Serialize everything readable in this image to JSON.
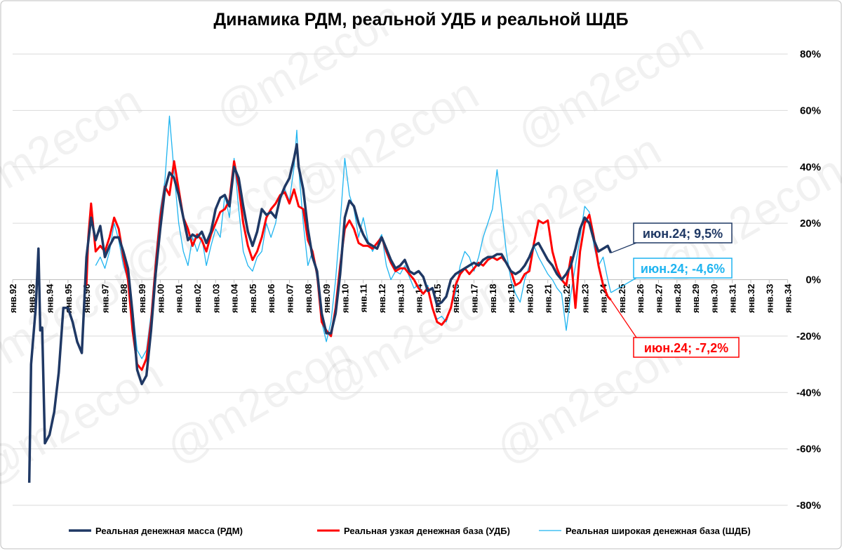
{
  "chart_data": {
    "type": "line",
    "title": "Динамика РДМ, реальной УДБ и реальной ШДБ",
    "watermark": "@m2econ",
    "xlim": [
      1992,
      2034
    ],
    "xticks": [
      {
        "value": 1992,
        "label": "янв.92"
      },
      {
        "value": 1993,
        "label": "янв.93"
      },
      {
        "value": 1994,
        "label": "янв.94"
      },
      {
        "value": 1995,
        "label": "янв.95"
      },
      {
        "value": 1996,
        "label": "янв.96"
      },
      {
        "value": 1997,
        "label": "янв.97"
      },
      {
        "value": 1998,
        "label": "янв.98"
      },
      {
        "value": 1999,
        "label": "янв.99"
      },
      {
        "value": 2000,
        "label": "янв.00"
      },
      {
        "value": 2001,
        "label": "янв.01"
      },
      {
        "value": 2002,
        "label": "янв.02"
      },
      {
        "value": 2003,
        "label": "янв.03"
      },
      {
        "value": 2004,
        "label": "янв.04"
      },
      {
        "value": 2005,
        "label": "янв.05"
      },
      {
        "value": 2006,
        "label": "янв.06"
      },
      {
        "value": 2007,
        "label": "янв.07"
      },
      {
        "value": 2008,
        "label": "янв.08"
      },
      {
        "value": 2009,
        "label": "янв.09"
      },
      {
        "value": 2010,
        "label": "янв.10"
      },
      {
        "value": 2011,
        "label": "янв.11"
      },
      {
        "value": 2012,
        "label": "янв.12"
      },
      {
        "value": 2013,
        "label": "янв.13"
      },
      {
        "value": 2014,
        "label": "янв.14"
      },
      {
        "value": 2015,
        "label": "янв.15"
      },
      {
        "value": 2016,
        "label": "янв.16"
      },
      {
        "value": 2017,
        "label": "янв.17"
      },
      {
        "value": 2018,
        "label": "янв.18"
      },
      {
        "value": 2019,
        "label": "янв.19"
      },
      {
        "value": 2020,
        "label": "янв.20"
      },
      {
        "value": 2021,
        "label": "янв.21"
      },
      {
        "value": 2022,
        "label": "янв.22"
      },
      {
        "value": 2023,
        "label": "янв.23"
      },
      {
        "value": 2024,
        "label": "янв.24"
      },
      {
        "value": 2025,
        "label": "янв.25"
      },
      {
        "value": 2026,
        "label": "янв.26"
      },
      {
        "value": 2027,
        "label": "янв.27"
      },
      {
        "value": 2028,
        "label": "янв.28"
      },
      {
        "value": 2029,
        "label": "янв.29"
      },
      {
        "value": 2030,
        "label": "янв.30"
      },
      {
        "value": 2031,
        "label": "янв.31"
      },
      {
        "value": 2032,
        "label": "янв.32"
      },
      {
        "value": 2033,
        "label": "янв.33"
      },
      {
        "value": 2034,
        "label": "янв.34"
      }
    ],
    "ylim": [
      -80,
      80
    ],
    "yticks": [
      {
        "value": -80,
        "label": "-80%"
      },
      {
        "value": -60,
        "label": "-60%"
      },
      {
        "value": -40,
        "label": "-40%"
      },
      {
        "value": -20,
        "label": "-20%"
      },
      {
        "value": 0,
        "label": "0%"
      },
      {
        "value": 20,
        "label": "20%"
      },
      {
        "value": 40,
        "label": "40%"
      },
      {
        "value": 60,
        "label": "60%"
      },
      {
        "value": 80,
        "label": "80%"
      }
    ],
    "grid": true,
    "series": [
      {
        "name": "Реальная денежная масса (РДМ)",
        "color": "#1f3864",
        "width": 3.5,
        "x": [
          1992.9,
          1993,
          1993.25,
          1993.4,
          1993.5,
          1993.6,
          1993.75,
          1994,
          1994.25,
          1994.5,
          1994.75,
          1995,
          1995.25,
          1995.5,
          1995.75,
          1996,
          1996.25,
          1996.5,
          1996.75,
          1997,
          1997.25,
          1997.5,
          1997.75,
          1998,
          1998.25,
          1998.5,
          1998.75,
          1999,
          1999.25,
          1999.5,
          1999.75,
          2000,
          2000.25,
          2000.5,
          2000.75,
          2001,
          2001.25,
          2001.5,
          2001.75,
          2002,
          2002.25,
          2002.5,
          2002.75,
          2003,
          2003.25,
          2003.5,
          2003.75,
          2004,
          2004.25,
          2004.5,
          2004.75,
          2005,
          2005.25,
          2005.5,
          2005.75,
          2006,
          2006.25,
          2006.5,
          2006.75,
          2007,
          2007.25,
          2007.4,
          2007.5,
          2007.75,
          2008,
          2008.25,
          2008.5,
          2008.75,
          2009,
          2009.25,
          2009.5,
          2009.75,
          2010,
          2010.25,
          2010.5,
          2010.75,
          2011,
          2011.25,
          2011.5,
          2011.75,
          2012,
          2012.25,
          2012.5,
          2012.75,
          2013,
          2013.25,
          2013.5,
          2013.75,
          2014,
          2014.25,
          2014.5,
          2014.75,
          2015,
          2015.25,
          2015.5,
          2015.75,
          2016,
          2016.25,
          2016.5,
          2016.75,
          2017,
          2017.25,
          2017.5,
          2017.75,
          2018,
          2018.25,
          2018.5,
          2018.75,
          2019,
          2019.25,
          2019.5,
          2019.75,
          2020,
          2020.25,
          2020.5,
          2020.75,
          2021,
          2021.25,
          2021.5,
          2021.75,
          2022,
          2022.25,
          2022.5,
          2022.75,
          2023,
          2023.25,
          2023.5,
          2023.75,
          2024,
          2024.25,
          2024.42
        ],
        "values": [
          -72,
          -30,
          -10,
          11,
          -18,
          -17,
          -58,
          -55,
          -47,
          -33,
          -10,
          -10,
          -15,
          -22,
          -26,
          8,
          22,
          14,
          19,
          8,
          12,
          15,
          15,
          10,
          4,
          -12,
          -32,
          -37,
          -34,
          -18,
          2,
          18,
          32,
          38,
          36,
          30,
          22,
          14,
          16,
          15,
          17,
          13,
          17,
          25,
          29,
          30,
          26,
          40,
          36,
          26,
          17,
          12,
          17,
          25,
          23,
          24,
          22,
          29,
          33,
          36,
          43,
          48,
          40,
          32,
          18,
          8,
          3,
          -12,
          -19,
          -19,
          -12,
          2,
          22,
          28,
          26,
          20,
          16,
          13,
          12,
          11,
          15,
          11,
          7,
          4,
          5,
          7,
          3,
          2,
          3,
          1,
          -4,
          -3,
          -9,
          -8,
          -6,
          0,
          2,
          3,
          4,
          5,
          6,
          5,
          7,
          8,
          8,
          9,
          9,
          6,
          3,
          2,
          3,
          5,
          8,
          12,
          13,
          10,
          7,
          5,
          2,
          0,
          2,
          5,
          11,
          18,
          22,
          20,
          14,
          10,
          11,
          12,
          9.5
        ]
      },
      {
        "name": "Реальная узкая  денежная база (УДБ)",
        "color": "#ff0000",
        "width": 3,
        "x": [
          1996,
          1996.1,
          1996.25,
          1996.5,
          1996.75,
          1997,
          1997.25,
          1997.5,
          1997.75,
          1998,
          1998.25,
          1998.5,
          1998.75,
          1999,
          1999.25,
          1999.5,
          1999.75,
          2000,
          2000.25,
          2000.5,
          2000.75,
          2001,
          2001.25,
          2001.5,
          2001.75,
          2002,
          2002.25,
          2002.5,
          2002.75,
          2003,
          2003.25,
          2003.5,
          2003.75,
          2004,
          2004.25,
          2004.5,
          2004.75,
          2005,
          2005.25,
          2005.5,
          2005.75,
          2006,
          2006.25,
          2006.5,
          2006.75,
          2007,
          2007.25,
          2007.5,
          2007.75,
          2008,
          2008.25,
          2008.5,
          2008.75,
          2009,
          2009.25,
          2009.5,
          2009.75,
          2010,
          2010.25,
          2010.5,
          2010.75,
          2011,
          2011.25,
          2011.5,
          2011.75,
          2012,
          2012.25,
          2012.5,
          2012.75,
          2013,
          2013.25,
          2013.5,
          2013.75,
          2014,
          2014.25,
          2014.5,
          2014.75,
          2015,
          2015.25,
          2015.5,
          2015.75,
          2016,
          2016.25,
          2016.5,
          2016.75,
          2017,
          2017.25,
          2017.5,
          2017.75,
          2018,
          2018.25,
          2018.5,
          2018.75,
          2019,
          2019.25,
          2019.5,
          2019.75,
          2020,
          2020.25,
          2020.5,
          2020.75,
          2021,
          2021.25,
          2021.5,
          2021.75,
          2022,
          2022.25,
          2022.5,
          2022.75,
          2023,
          2023.25,
          2023.5,
          2023.75,
          2024,
          2024.25,
          2024.42
        ],
        "values": [
          -2,
          15,
          27,
          10,
          12,
          10,
          15,
          22,
          18,
          8,
          0,
          -18,
          -30,
          -32,
          -28,
          -15,
          5,
          22,
          33,
          30,
          42,
          32,
          22,
          18,
          12,
          16,
          14,
          10,
          16,
          20,
          24,
          25,
          28,
          42,
          33,
          20,
          12,
          7,
          10,
          15,
          22,
          25,
          27,
          30,
          31,
          27,
          32,
          26,
          25,
          14,
          10,
          2,
          -15,
          -18,
          -20,
          -10,
          5,
          18,
          21,
          18,
          13,
          12,
          12,
          11,
          13,
          15,
          10,
          6,
          3,
          4,
          4,
          2,
          0,
          -3,
          -5,
          -3,
          -10,
          -15,
          -16,
          -14,
          -10,
          -2,
          2,
          4,
          2,
          4,
          6,
          5,
          7,
          8,
          7,
          8,
          6,
          3,
          -2,
          -1,
          2,
          3,
          13,
          21,
          20,
          21,
          10,
          4,
          0,
          -2,
          8,
          -10,
          10,
          20,
          23,
          15,
          5,
          -2,
          -6,
          -7.2
        ]
      },
      {
        "name": "Реальная широкая денежная база (ШДБ)",
        "color": "#1fb4f0",
        "width": 1.3,
        "x": [
          1996.5,
          1996.75,
          1997,
          1997.25,
          1997.5,
          1997.75,
          1998,
          1998.25,
          1998.5,
          1998.75,
          1999,
          1999.25,
          1999.5,
          1999.75,
          2000,
          2000.25,
          2000.5,
          2000.75,
          2001,
          2001.25,
          2001.5,
          2001.75,
          2002,
          2002.25,
          2002.5,
          2002.75,
          2003,
          2003.25,
          2003.5,
          2003.75,
          2004,
          2004.25,
          2004.5,
          2004.75,
          2005,
          2005.25,
          2005.5,
          2005.75,
          2006,
          2006.25,
          2006.5,
          2006.75,
          2007,
          2007.25,
          2007.4,
          2007.5,
          2007.75,
          2008,
          2008.25,
          2008.5,
          2008.75,
          2009,
          2009.25,
          2009.5,
          2009.75,
          2010,
          2010.25,
          2010.5,
          2010.75,
          2011,
          2011.25,
          2011.5,
          2011.75,
          2012,
          2012.25,
          2012.5,
          2012.75,
          2013,
          2013.25,
          2013.5,
          2013.75,
          2014,
          2014.25,
          2014.5,
          2014.75,
          2015,
          2015.25,
          2015.5,
          2015.75,
          2016,
          2016.25,
          2016.5,
          2016.75,
          2017,
          2017.25,
          2017.5,
          2017.75,
          2018,
          2018.25,
          2018.5,
          2018.75,
          2019,
          2019.25,
          2019.5,
          2019.75,
          2020,
          2020.25,
          2020.5,
          2020.75,
          2021,
          2021.25,
          2021.5,
          2021.75,
          2022,
          2022.25,
          2022.5,
          2022.75,
          2023,
          2023.25,
          2023.5,
          2023.75,
          2024,
          2024.25,
          2024.42
        ],
        "values": [
          5,
          8,
          4,
          10,
          20,
          14,
          5,
          0,
          -10,
          -25,
          -28,
          -25,
          -12,
          8,
          25,
          35,
          58,
          38,
          20,
          10,
          5,
          15,
          10,
          15,
          5,
          12,
          18,
          15,
          30,
          22,
          43,
          25,
          10,
          5,
          3,
          8,
          10,
          20,
          15,
          20,
          30,
          32,
          28,
          40,
          53,
          40,
          20,
          5,
          10,
          0,
          -15,
          -22,
          -15,
          0,
          20,
          43,
          30,
          25,
          15,
          22,
          14,
          10,
          13,
          16,
          5,
          0,
          3,
          2,
          5,
          1,
          -3,
          -2,
          -5,
          -2,
          -10,
          -14,
          -13,
          -15,
          -10,
          -5,
          5,
          10,
          8,
          3,
          8,
          15,
          20,
          25,
          39,
          25,
          10,
          0,
          -5,
          -8,
          0,
          5,
          12,
          8,
          5,
          2,
          0,
          -3,
          -5,
          -18,
          -5,
          5,
          15,
          26,
          24,
          12,
          5,
          8,
          0,
          -4.6
        ]
      }
    ],
    "annotations": [
      "июн.24; 9,5%",
      "июн.24; -7,2%",
      "июн.24; -4,6%"
    ]
  }
}
